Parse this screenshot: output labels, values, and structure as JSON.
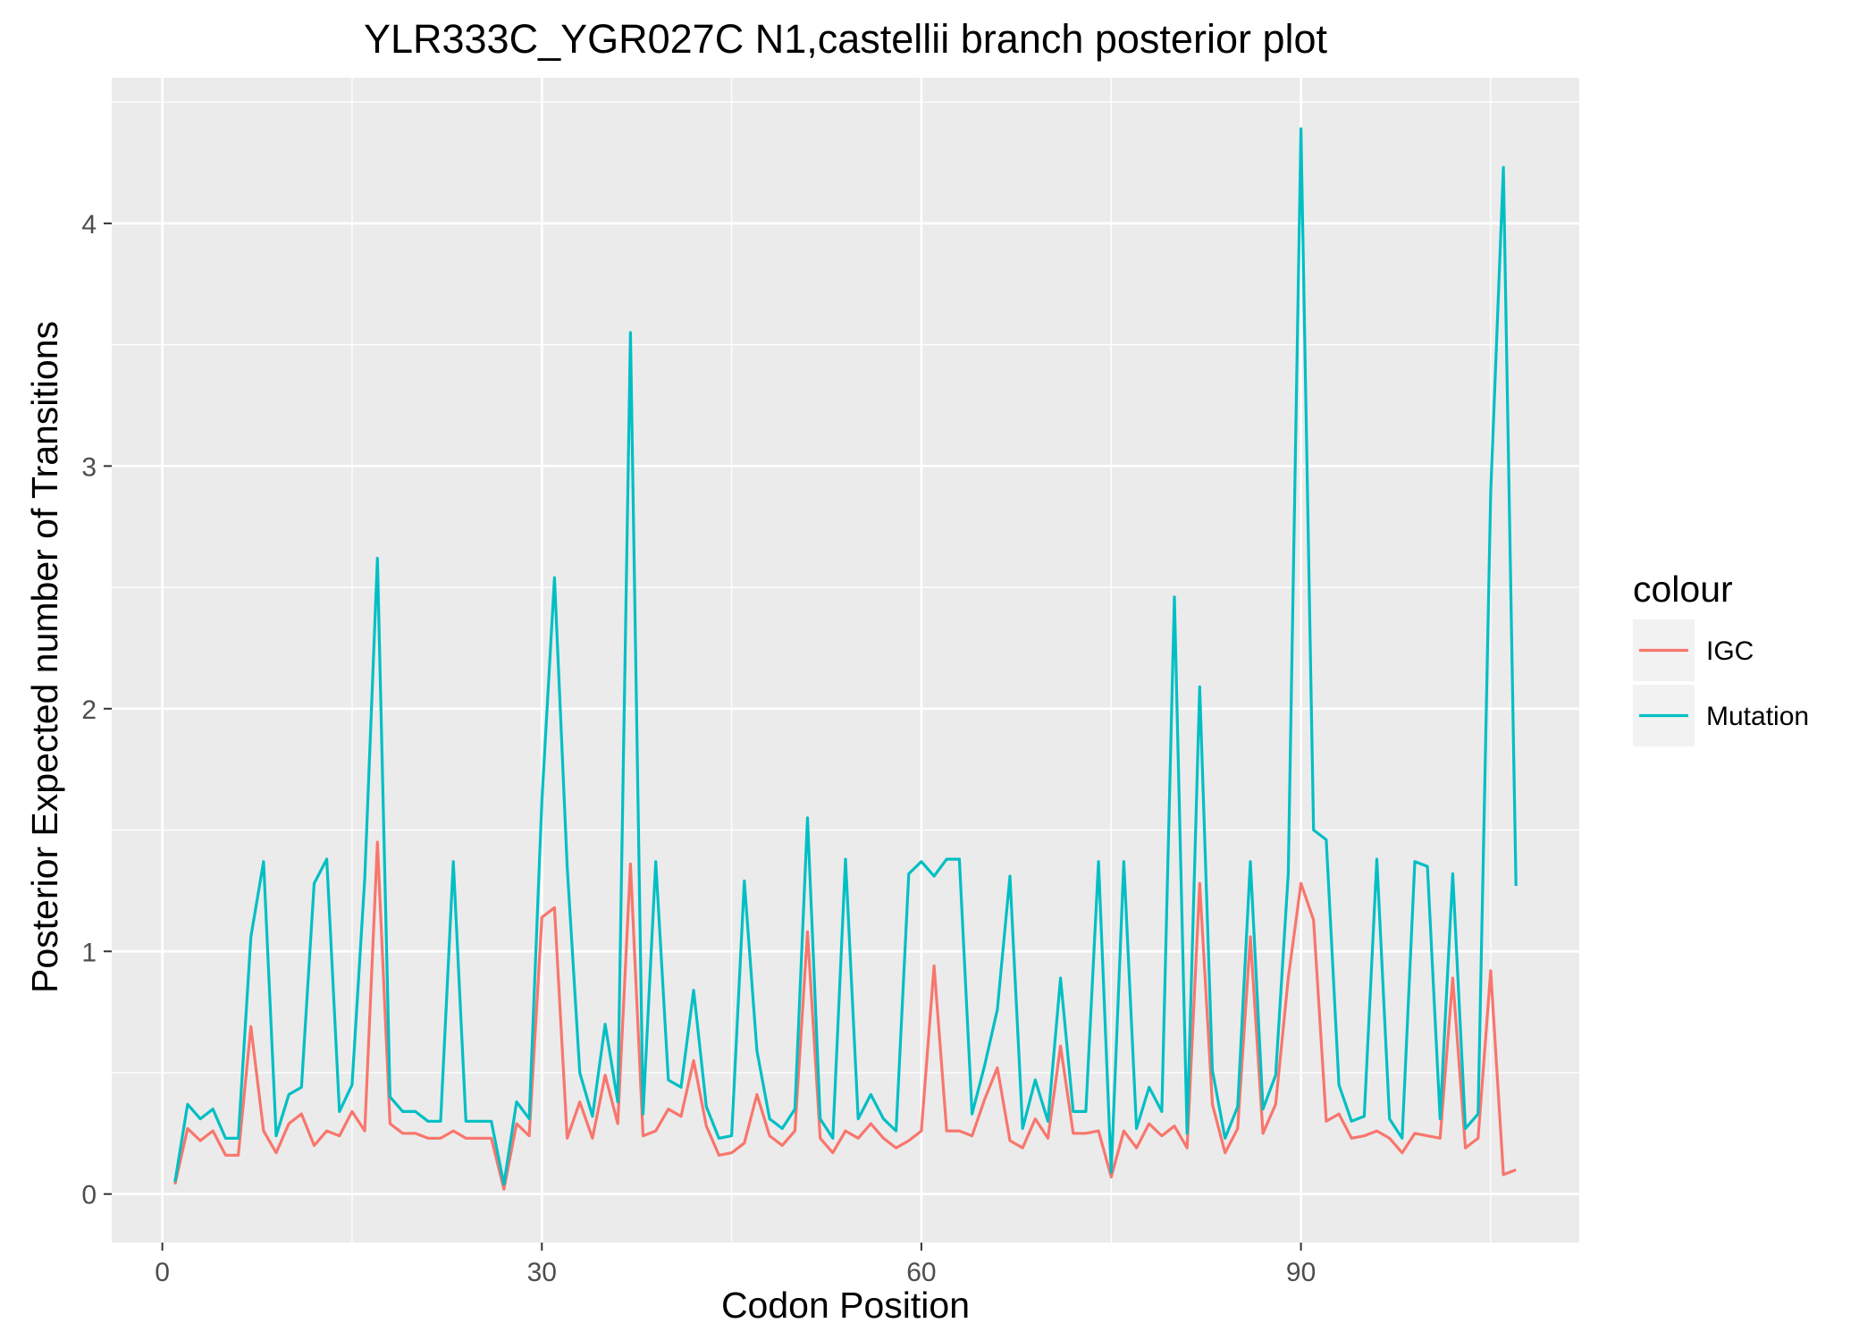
{
  "chart_data": {
    "type": "line",
    "title": "YLR333C_YGR027C N1,castellii branch posterior plot",
    "xlabel": "Codon Position",
    "ylabel": "Posterior Expected number of Transitions",
    "xlim": [
      -4,
      112
    ],
    "ylim": [
      -0.2,
      4.6
    ],
    "x_ticks": [
      0,
      30,
      60,
      90
    ],
    "y_ticks": [
      0,
      1,
      2,
      3,
      4
    ],
    "grid": true,
    "legend": {
      "title": "colour",
      "position": "right"
    },
    "series": [
      {
        "name": "IGC",
        "color": "#F8766D",
        "x": [
          1,
          2,
          3,
          4,
          5,
          6,
          7,
          8,
          9,
          10,
          11,
          12,
          13,
          14,
          15,
          16,
          17,
          18,
          19,
          20,
          21,
          22,
          23,
          24,
          25,
          26,
          27,
          28,
          29,
          30,
          31,
          32,
          33,
          34,
          35,
          36,
          37,
          38,
          39,
          40,
          41,
          42,
          43,
          44,
          45,
          46,
          47,
          48,
          49,
          50,
          51,
          52,
          53,
          54,
          55,
          56,
          57,
          58,
          59,
          60,
          61,
          62,
          63,
          64,
          65,
          66,
          67,
          68,
          69,
          70,
          71,
          72,
          73,
          74,
          75,
          76,
          77,
          78,
          79,
          80,
          81,
          82,
          83,
          84,
          85,
          86,
          87,
          88,
          89,
          90,
          91,
          92,
          93,
          94,
          95,
          96,
          97,
          98,
          99,
          100,
          101,
          102,
          103,
          104,
          105,
          106,
          107
        ],
        "values": [
          0.04,
          0.27,
          0.22,
          0.26,
          0.16,
          0.16,
          0.69,
          0.26,
          0.17,
          0.29,
          0.33,
          0.2,
          0.26,
          0.24,
          0.34,
          0.26,
          1.45,
          0.29,
          0.25,
          0.25,
          0.23,
          0.23,
          0.26,
          0.23,
          0.23,
          0.23,
          0.02,
          0.29,
          0.24,
          1.14,
          1.18,
          0.23,
          0.38,
          0.23,
          0.49,
          0.29,
          1.36,
          0.24,
          0.26,
          0.35,
          0.32,
          0.55,
          0.28,
          0.16,
          0.17,
          0.21,
          0.41,
          0.24,
          0.2,
          0.26,
          1.08,
          0.23,
          0.17,
          0.26,
          0.23,
          0.29,
          0.23,
          0.19,
          0.22,
          0.26,
          0.94,
          0.26,
          0.26,
          0.24,
          0.39,
          0.52,
          0.22,
          0.19,
          0.31,
          0.23,
          0.61,
          0.25,
          0.25,
          0.26,
          0.07,
          0.26,
          0.19,
          0.29,
          0.24,
          0.28,
          0.19,
          1.28,
          0.37,
          0.17,
          0.27,
          1.06,
          0.25,
          0.37,
          0.89,
          1.28,
          1.13,
          0.3,
          0.33,
          0.23,
          0.24,
          0.26,
          0.23,
          0.17,
          0.25,
          0.24,
          0.23,
          0.89,
          0.19,
          0.23,
          0.92,
          0.08,
          0.1
        ]
      },
      {
        "name": "Mutation",
        "color": "#00BFC4",
        "x": [
          1,
          2,
          3,
          4,
          5,
          6,
          7,
          8,
          9,
          10,
          11,
          12,
          13,
          14,
          15,
          16,
          17,
          18,
          19,
          20,
          21,
          22,
          23,
          24,
          25,
          26,
          27,
          28,
          29,
          30,
          31,
          32,
          33,
          34,
          35,
          36,
          37,
          38,
          39,
          40,
          41,
          42,
          43,
          44,
          45,
          46,
          47,
          48,
          49,
          50,
          51,
          52,
          53,
          54,
          55,
          56,
          57,
          58,
          59,
          60,
          61,
          62,
          63,
          64,
          65,
          66,
          67,
          68,
          69,
          70,
          71,
          72,
          73,
          74,
          75,
          76,
          77,
          78,
          79,
          80,
          81,
          82,
          83,
          84,
          85,
          86,
          87,
          88,
          89,
          90,
          91,
          92,
          93,
          94,
          95,
          96,
          97,
          98,
          99,
          100,
          101,
          102,
          103,
          104,
          105,
          106,
          107
        ],
        "values": [
          0.05,
          0.37,
          0.31,
          0.35,
          0.23,
          0.23,
          1.06,
          1.37,
          0.24,
          0.41,
          0.44,
          1.28,
          1.38,
          0.34,
          0.45,
          1.3,
          2.62,
          0.4,
          0.34,
          0.34,
          0.3,
          0.3,
          1.37,
          0.3,
          0.3,
          0.3,
          0.04,
          0.38,
          0.31,
          1.62,
          2.54,
          1.35,
          0.5,
          0.32,
          0.7,
          0.38,
          3.55,
          0.33,
          1.37,
          0.47,
          0.44,
          0.84,
          0.36,
          0.23,
          0.24,
          1.29,
          0.59,
          0.31,
          0.27,
          0.35,
          1.55,
          0.31,
          0.23,
          1.38,
          0.31,
          0.41,
          0.31,
          0.26,
          1.32,
          1.37,
          1.31,
          1.38,
          1.38,
          0.33,
          0.53,
          0.76,
          1.31,
          0.27,
          0.47,
          0.3,
          0.89,
          0.34,
          0.34,
          1.37,
          0.09,
          1.37,
          0.27,
          0.44,
          0.34,
          2.46,
          0.25,
          2.09,
          0.51,
          0.23,
          0.36,
          1.37,
          0.35,
          0.49,
          1.32,
          4.39,
          1.5,
          1.46,
          0.45,
          0.3,
          0.32,
          1.38,
          0.31,
          0.23,
          1.37,
          1.35,
          0.31,
          1.32,
          0.27,
          0.33,
          2.89,
          4.23,
          1.27
        ]
      }
    ]
  }
}
